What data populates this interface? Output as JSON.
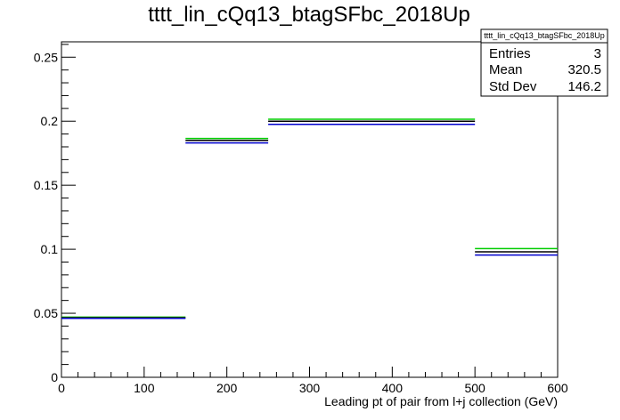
{
  "chart_data": {
    "type": "histogram",
    "title": "tttt_lin_cQq13_btagSFbc_2018Up",
    "xlabel": "Leading pt of pair from l+j collection (GeV)",
    "ylabel": "",
    "xlim": [
      0,
      600
    ],
    "ylim": [
      0,
      0.262
    ],
    "x_ticks": [
      0,
      100,
      200,
      300,
      400,
      500,
      600
    ],
    "x_tick_labels": [
      "0",
      "100",
      "200",
      "300",
      "400",
      "500",
      "600"
    ],
    "y_ticks": [
      0,
      0.05,
      0.1,
      0.15,
      0.2,
      0.25
    ],
    "y_tick_labels": [
      "0",
      "0.05",
      "0.1",
      "0.15",
      "0.2",
      "0.25"
    ],
    "grid": false,
    "legend": "none",
    "bins": [
      {
        "x_low": 0,
        "x_high": 150,
        "values": [
          0.047,
          0.0465,
          0.046
        ]
      },
      {
        "x_low": 150,
        "x_high": 250,
        "values": [
          0.1865,
          0.185,
          0.183
        ]
      },
      {
        "x_low": 250,
        "x_high": 500,
        "values": [
          0.2015,
          0.2,
          0.1975
        ]
      },
      {
        "x_low": 500,
        "x_high": 600,
        "values": [
          0.1005,
          0.098,
          0.0955
        ]
      }
    ],
    "series": [
      {
        "color": "#00cc00",
        "values": [
          0.047,
          0.1865,
          0.2015,
          0.1005
        ]
      },
      {
        "color": "#000000",
        "values": [
          0.0465,
          0.185,
          0.2,
          0.098
        ]
      },
      {
        "color": "#0000cc",
        "values": [
          0.046,
          0.183,
          0.1975,
          0.0955
        ]
      }
    ],
    "stats_box": {
      "title": "tttt_lin_cQq13_btagSFbc_2018Up",
      "position": "top-right",
      "rows": [
        {
          "label": "Entries",
          "value": "3"
        },
        {
          "label": "Mean",
          "value": "320.5"
        },
        {
          "label": "Std Dev",
          "value": "146.2"
        }
      ]
    }
  }
}
